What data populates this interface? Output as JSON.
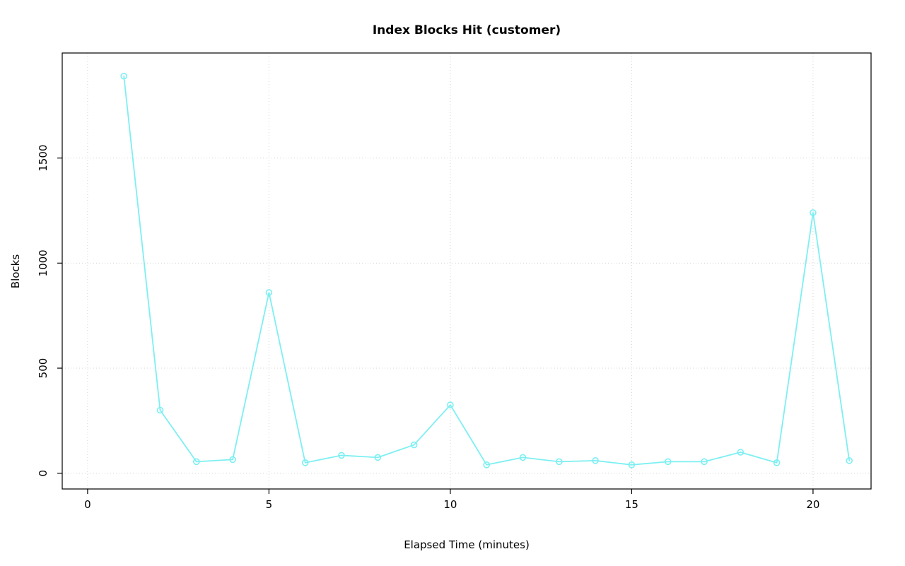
{
  "chart_data": {
    "type": "line",
    "title": "Index Blocks Hit (customer)",
    "xlabel": "Elapsed Time (minutes)",
    "ylabel": "Blocks",
    "x": [
      1,
      2,
      3,
      4,
      5,
      6,
      7,
      8,
      9,
      10,
      11,
      12,
      13,
      14,
      15,
      16,
      17,
      18,
      19,
      20,
      21
    ],
    "y": [
      1890,
      300,
      55,
      65,
      860,
      50,
      85,
      75,
      135,
      325,
      40,
      75,
      55,
      60,
      40,
      55,
      55,
      100,
      50,
      1240,
      60
    ],
    "x_ticks": [
      0,
      5,
      10,
      15,
      20
    ],
    "y_ticks": [
      0,
      500,
      1000,
      1500
    ],
    "xlim": [
      -0.7,
      21.6
    ],
    "ylim": [
      -75,
      2000
    ],
    "grid": true,
    "legend": "none",
    "line_color": "#7DEFF2",
    "grid_color": "#D3D3D3",
    "box_color": "#000000",
    "marker": "open-circle"
  }
}
